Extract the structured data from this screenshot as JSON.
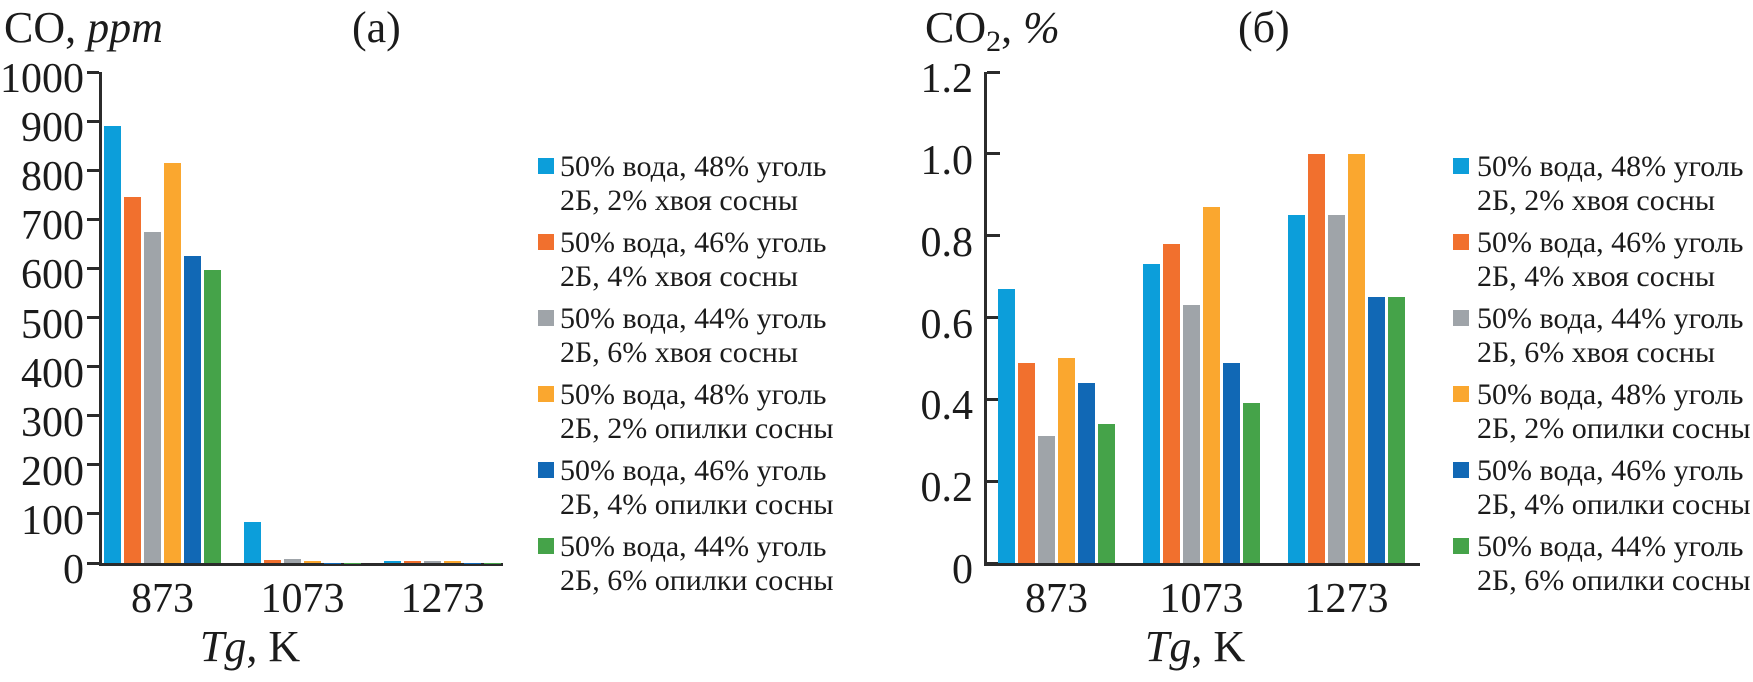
{
  "figure": {
    "description": "Two grouped bar charts of syngas output vs gasification temperature",
    "background": "#ffffff",
    "axis_color": "#2b2b2b",
    "text_color": "#1b1b1b"
  },
  "chart_data": [
    {
      "type": "bar",
      "panel_label": "(a)",
      "title": "CO, ppm",
      "title_parts": [
        {
          "t": "CO, ",
          "i": false
        },
        {
          "t": "ppm",
          "i": true
        }
      ],
      "xlabel": "Tg, K",
      "xlabel_parts": [
        {
          "t": "Tg",
          "i": true
        },
        {
          "t": ", K",
          "i": false
        }
      ],
      "categories": [
        "873",
        "1073",
        "1273"
      ],
      "ylim": [
        0,
        1000
      ],
      "ytick_labels": [
        "0",
        "100",
        "200",
        "300",
        "400",
        "500",
        "600",
        "700",
        "800",
        "900",
        "1000"
      ],
      "grid": false,
      "legend_position": "right",
      "series": [
        {
          "name": "50% вода, 48% уголь 2Б, 2% хвоя сосны",
          "legend_lines": [
            "50% вода, 48% уголь",
            "2Б, 2% хвоя сосны"
          ],
          "color": "#0C9EDA",
          "values": [
            890,
            83,
            4
          ]
        },
        {
          "name": "50% вода, 46% уголь 2Б, 4% хвоя сосны",
          "legend_lines": [
            "50% вода, 46% уголь",
            "2Б, 4% хвоя сосны"
          ],
          "color": "#F1702E",
          "values": [
            745,
            7,
            4
          ]
        },
        {
          "name": "50% вода, 44% уголь 2Б, 6% хвоя сосны",
          "legend_lines": [
            "50% вода, 44% уголь",
            "2Б, 6% хвоя сосны"
          ],
          "color": "#9FA4A9",
          "values": [
            674,
            9,
            5
          ]
        },
        {
          "name": "50% вода, 48% уголь 2Б, 2% опилки сосны",
          "legend_lines": [
            "50% вода, 48% уголь",
            "2Б, 2% опилки сосны"
          ],
          "color": "#FAA72F",
          "values": [
            814,
            4,
            4
          ]
        },
        {
          "name": "50% вода, 46% уголь 2Б, 4% опилки сосны",
          "legend_lines": [
            "50% вода, 46% уголь",
            "2Б, 4% опилки сосны"
          ],
          "color": "#1168B5",
          "values": [
            625,
            1,
            1
          ]
        },
        {
          "name": "50% вода, 44% уголь 2Б, 6% опилки сосны",
          "legend_lines": [
            "50% вода, 44% уголь",
            "2Б, 6% опилки сосны"
          ],
          "color": "#45A349",
          "values": [
            596,
            1,
            1
          ]
        }
      ]
    },
    {
      "type": "bar",
      "panel_label": "(б)",
      "title": "CO2, %",
      "title_parts": [
        {
          "t": "CO",
          "i": false
        },
        {
          "t": "2",
          "i": false,
          "sub": true
        },
        {
          "t": ", ",
          "i": false
        },
        {
          "t": "%",
          "i": true
        }
      ],
      "xlabel": "Tg, K",
      "xlabel_parts": [
        {
          "t": "Tg",
          "i": true
        },
        {
          "t": ", K",
          "i": false
        }
      ],
      "categories": [
        "873",
        "1073",
        "1273"
      ],
      "ylim": [
        0,
        1.2
      ],
      "ytick_labels": [
        "0",
        "0.2",
        "0.4",
        "0.6",
        "0.8",
        "1.0",
        "1.2"
      ],
      "grid": false,
      "legend_position": "right",
      "series": [
        {
          "name": "50% вода, 48% уголь 2Б, 2% хвоя сосны",
          "legend_lines": [
            "50% вода, 48% уголь",
            "2Б, 2% хвоя сосны"
          ],
          "color": "#0C9EDA",
          "values": [
            0.67,
            0.73,
            0.85
          ]
        },
        {
          "name": "50% вода, 46% уголь 2Б, 4% хвоя сосны",
          "legend_lines": [
            "50% вода, 46% уголь",
            "2Б, 4% хвоя сосны"
          ],
          "color": "#F1702E",
          "values": [
            0.49,
            0.78,
            1.0
          ]
        },
        {
          "name": "50% вода, 44% уголь 2Б, 6% хвоя сосны",
          "legend_lines": [
            "50% вода, 44% уголь",
            "2Б, 6% хвоя сосны"
          ],
          "color": "#9FA4A9",
          "values": [
            0.31,
            0.63,
            0.85
          ]
        },
        {
          "name": "50% вода, 48% уголь 2Б, 2% опилки сосны",
          "legend_lines": [
            "50% вода, 48% уголь",
            "2Б, 2% опилки сосны"
          ],
          "color": "#FAA72F",
          "values": [
            0.5,
            0.87,
            1.0
          ]
        },
        {
          "name": "50% вода, 46% уголь 2Б, 4% опилки сосны",
          "legend_lines": [
            "50% вода, 46% уголь",
            "2Б, 4% опилки сосны"
          ],
          "color": "#1168B5",
          "values": [
            0.44,
            0.49,
            0.65
          ]
        },
        {
          "name": "50% вода, 44% уголь 2Б, 6% опилки сосны",
          "legend_lines": [
            "50% вода, 44% уголь",
            "2Б, 6% опилки сосны"
          ],
          "color": "#45A349",
          "values": [
            0.34,
            0.39,
            0.65
          ]
        }
      ]
    }
  ]
}
